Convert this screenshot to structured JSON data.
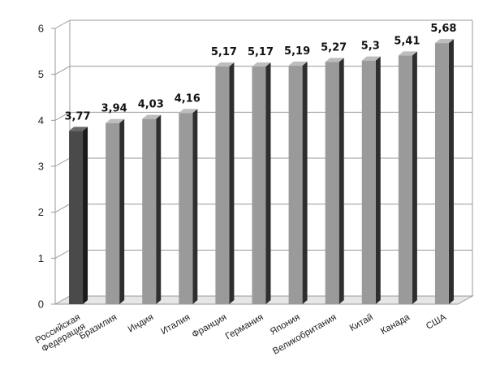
{
  "chart_data": {
    "type": "bar",
    "title": "",
    "xlabel": "",
    "ylabel": "",
    "ylim": [
      0,
      6
    ],
    "yticks": [
      "0",
      "1",
      "2",
      "3",
      "4",
      "5",
      "6"
    ],
    "grid": true,
    "legend": "none",
    "style": "3d-bars",
    "categories": [
      [
        "Российская",
        "Федерация"
      ],
      [
        "Бразилия"
      ],
      [
        "Индия"
      ],
      [
        "Италия"
      ],
      [
        "Франция"
      ],
      [
        "Германия"
      ],
      [
        "Япония"
      ],
      [
        "Великобритания"
      ],
      [
        "Китай"
      ],
      [
        "Канада"
      ],
      [
        "США"
      ]
    ],
    "values": [
      3.77,
      3.94,
      4.03,
      4.16,
      5.17,
      5.17,
      5.19,
      5.27,
      5.3,
      5.41,
      5.68
    ],
    "value_labels": [
      "3,77",
      "3,94",
      "4,03",
      "4,16",
      "5,17",
      "5,17",
      "5,19",
      "5,27",
      "5,3",
      "5,41",
      "5,68"
    ],
    "colors": {
      "highlight_front": "#4a4a4a",
      "highlight_side": "#1a1a1a",
      "highlight_top": "#6a6a6a",
      "bar_front": "#9a9a9a",
      "bar_side": "#2e2e2e",
      "bar_top": "#bdbdbd",
      "grid": "#9a9a9a",
      "floor": "#e6e6e6"
    }
  }
}
